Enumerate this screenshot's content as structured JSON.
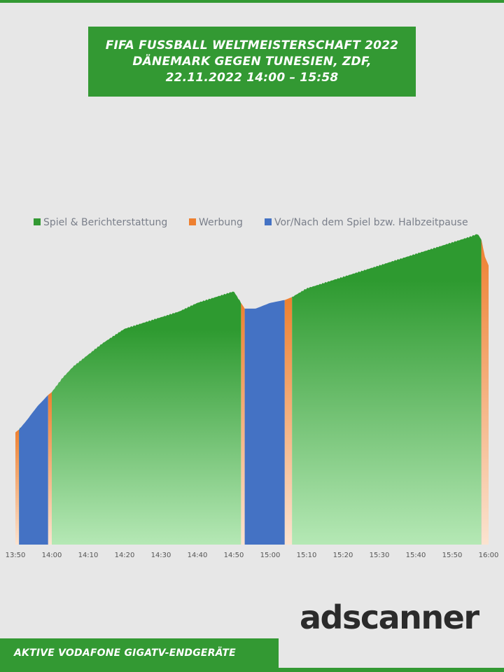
{
  "header": {
    "title_lines": [
      "FIFA FUSSBALL WELTMEISTERSCHAFT 2022",
      "DÄNEMARK GEGEN TUNESIEN, ZDF,",
      "22.11.2022  14:00 – 15:58"
    ]
  },
  "brand": {
    "logo_text": "adscanner"
  },
  "footer": {
    "label": "AKTIVE VODAFONE GIGATV-ENDGERÄTE"
  },
  "colors": {
    "brand_green": "#339933",
    "game_green_top": "#2e9a30",
    "game_green_bottom": "#b5e8b5",
    "ads_orange_top": "#ee8030",
    "ads_orange_bottom": "#fbe3d0",
    "pre_post_blue": "#4472c4"
  },
  "chart_data": {
    "type": "area",
    "title": "",
    "xlabel": "",
    "ylabel": "",
    "x_ticks": [
      "13:50",
      "14:00",
      "14:10",
      "14:20",
      "14:30",
      "14:40",
      "14:50",
      "15:00",
      "15:10",
      "15:20",
      "15:30",
      "15:40",
      "15:50",
      "16:00"
    ],
    "x_range": [
      "13:50",
      "16:00"
    ],
    "y_axis_shown": false,
    "grid": false,
    "legend_position": "top",
    "legend": [
      {
        "name": "Spiel & Berichterstattung",
        "color": "#339933"
      },
      {
        "name": "Werbung",
        "color": "#ee8030"
      },
      {
        "name": "Vor/Nach dem Spiel bzw. Halbzeitpause",
        "color": "#4472c4"
      }
    ],
    "segments": [
      {
        "series": "Werbung",
        "start": "13:50",
        "end": "13:51"
      },
      {
        "series": "Spiel & Berichterstattung",
        "start": "13:51",
        "end": "13:51"
      },
      {
        "series": "Vor/Nach dem Spiel bzw. Halbzeitpause",
        "start": "13:51",
        "end": "13:59"
      },
      {
        "series": "Werbung",
        "start": "13:59",
        "end": "14:00"
      },
      {
        "series": "Spiel & Berichterstattung",
        "start": "14:00",
        "end": "14:52"
      },
      {
        "series": "Werbung",
        "start": "14:52",
        "end": "14:53"
      },
      {
        "series": "Vor/Nach dem Spiel bzw. Halbzeitpause",
        "start": "14:53",
        "end": "15:04"
      },
      {
        "series": "Werbung",
        "start": "15:04",
        "end": "15:06"
      },
      {
        "series": "Spiel & Berichterstattung",
        "start": "15:06",
        "end": "15:58"
      },
      {
        "series": "Vor/Nach dem Spiel bzw. Halbzeitpause",
        "start": "15:58",
        "end": "15:58"
      },
      {
        "series": "Werbung",
        "start": "15:58",
        "end": "16:00"
      }
    ],
    "curve": {
      "unit": "relative share of peak",
      "points": [
        [
          "13:50",
          0.39
        ],
        [
          "13:51",
          0.4
        ],
        [
          "13:53",
          0.43
        ],
        [
          "13:56",
          0.48
        ],
        [
          "13:59",
          0.52
        ],
        [
          "14:00",
          0.53
        ],
        [
          "14:03",
          0.58
        ],
        [
          "14:06",
          0.62
        ],
        [
          "14:10",
          0.66
        ],
        [
          "14:14",
          0.7
        ],
        [
          "14:20",
          0.75
        ],
        [
          "14:25",
          0.77
        ],
        [
          "14:30",
          0.79
        ],
        [
          "14:35",
          0.81
        ],
        [
          "14:40",
          0.84
        ],
        [
          "14:45",
          0.86
        ],
        [
          "14:50",
          0.88
        ],
        [
          "14:51",
          0.86
        ],
        [
          "14:53",
          0.82
        ],
        [
          "14:56",
          0.82
        ],
        [
          "15:00",
          0.84
        ],
        [
          "15:04",
          0.85
        ],
        [
          "15:06",
          0.86
        ],
        [
          "15:10",
          0.89
        ],
        [
          "15:15",
          0.91
        ],
        [
          "15:20",
          0.93
        ],
        [
          "15:25",
          0.95
        ],
        [
          "15:30",
          0.97
        ],
        [
          "15:35",
          0.99
        ],
        [
          "15:40",
          1.01
        ],
        [
          "15:45",
          1.03
        ],
        [
          "15:50",
          1.05
        ],
        [
          "15:55",
          1.07
        ],
        [
          "15:57",
          1.08
        ],
        [
          "15:58",
          1.06
        ],
        [
          "15:59",
          1.0
        ],
        [
          "16:00",
          0.97
        ]
      ]
    }
  }
}
